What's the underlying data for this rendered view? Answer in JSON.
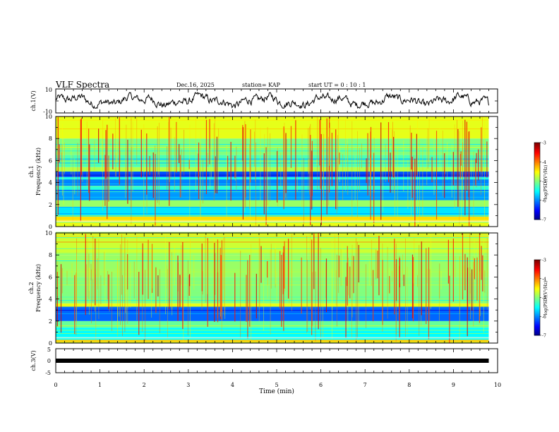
{
  "header": {
    "title": "VLF Spectra",
    "date": "Dec.16, 2025",
    "station": "station= KAP",
    "start": "start  UT =  0 : 10 : 1"
  },
  "chart_data": [
    {
      "id": "ch1-waveform",
      "type": "line",
      "title": "",
      "ylabel": "ch.1(V)",
      "xlim": [
        0,
        10
      ],
      "ylim": [
        -10,
        10
      ],
      "y_ticks": [
        "10",
        "-10"
      ],
      "series": [
        {
          "name": "ch.1",
          "baseline": 0,
          "amplitude_range": [
            -6,
            7
          ],
          "x_end": 9.8,
          "color": "#000000"
        }
      ]
    },
    {
      "id": "ch1-spectrogram",
      "type": "heatmap",
      "ylabel": "Frequency (kHz)",
      "channel_label": "ch.1",
      "xlim": [
        0,
        9.8
      ],
      "ylim": [
        0,
        10
      ],
      "y_ticks": [
        "0",
        "2",
        "4",
        "6",
        "8",
        "10"
      ],
      "colorbar": {
        "label": "log(PSD)(V²/Hz)",
        "range": [
          -7,
          -3
        ],
        "ticks": [
          "-3",
          "-4",
          "-5",
          "-6",
          "-7"
        ]
      },
      "bands": [
        {
          "from": 0.0,
          "to": 0.5,
          "level": -4.6
        },
        {
          "from": 0.5,
          "to": 0.9,
          "level": -4.4
        },
        {
          "from": 0.9,
          "to": 1.8,
          "level": -5.6
        },
        {
          "from": 1.8,
          "to": 2.4,
          "level": -4.9
        },
        {
          "from": 2.4,
          "to": 3.4,
          "level": -5.9
        },
        {
          "from": 3.4,
          "to": 3.7,
          "level": -5.3
        },
        {
          "from": 3.7,
          "to": 4.3,
          "level": -6.0
        },
        {
          "from": 4.3,
          "to": 4.5,
          "level": -5.4
        },
        {
          "from": 4.5,
          "to": 5.0,
          "level": -6.2
        },
        {
          "from": 5.0,
          "to": 5.4,
          "level": -4.8
        },
        {
          "from": 5.4,
          "to": 6.5,
          "level": -5.2
        },
        {
          "from": 6.5,
          "to": 8.0,
          "level": -5.0
        },
        {
          "from": 8.0,
          "to": 10.0,
          "level": -4.6
        }
      ]
    },
    {
      "id": "ch2-spectrogram",
      "type": "heatmap",
      "ylabel": "Frequency (kHz)",
      "channel_label": "ch.2",
      "xlim": [
        0,
        9.8
      ],
      "ylim": [
        0,
        10
      ],
      "y_ticks": [
        "0",
        "2",
        "4",
        "6",
        "8",
        "10"
      ],
      "colorbar": {
        "label": "log(PSD)(V²/Hz)",
        "range": [
          -7,
          -3
        ],
        "ticks": [
          "-3",
          "-4",
          "-5",
          "-6",
          "-7"
        ]
      },
      "bands": [
        {
          "from": 0.0,
          "to": 0.3,
          "level": -4.3
        },
        {
          "from": 0.3,
          "to": 1.4,
          "level": -5.5
        },
        {
          "from": 1.4,
          "to": 2.0,
          "level": -5.1
        },
        {
          "from": 2.0,
          "to": 3.3,
          "level": -6.1
        },
        {
          "from": 3.3,
          "to": 3.6,
          "level": -4.6
        },
        {
          "from": 3.6,
          "to": 6.0,
          "level": -5.0
        },
        {
          "from": 6.0,
          "to": 8.0,
          "level": -4.9
        },
        {
          "from": 8.0,
          "to": 10.0,
          "level": -4.7
        }
      ]
    },
    {
      "id": "ch3-waveform",
      "type": "line",
      "ylabel": "ch.3(V)",
      "xlabel": "Time (min)",
      "xlim": [
        0,
        10
      ],
      "ylim": [
        -5,
        5
      ],
      "y_ticks": [
        "5",
        "0",
        "-5"
      ],
      "x_ticks": [
        "0",
        "1",
        "2",
        "3",
        "4",
        "5",
        "6",
        "7",
        "8",
        "9",
        "10"
      ],
      "series": [
        {
          "name": "ch.3",
          "value": 0,
          "x_end": 9.8,
          "color": "#000000"
        }
      ]
    }
  ]
}
